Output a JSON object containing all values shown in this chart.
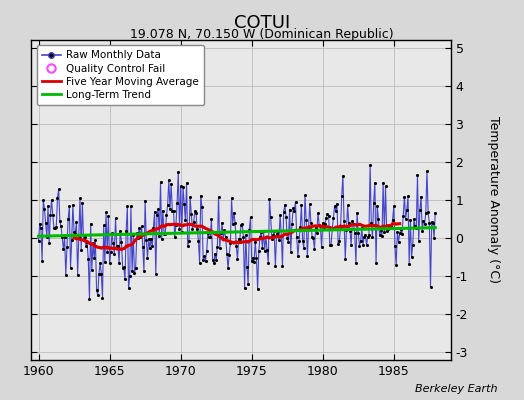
{
  "title": "COTUI",
  "subtitle": "19.078 N, 70.150 W (Dominican Republic)",
  "attribution": "Berkeley Earth",
  "ylabel": "Temperature Anomaly (°C)",
  "xlim": [
    1959.5,
    1989.0
  ],
  "ylim": [
    -3.2,
    5.2
  ],
  "yticks": [
    -3,
    -2,
    -1,
    0,
    1,
    2,
    3,
    4,
    5
  ],
  "xticks": [
    1960,
    1965,
    1970,
    1975,
    1980,
    1985
  ],
  "bg_color": "#d8d8d8",
  "plot_bg_color": "#e8e8e8",
  "raw_line_color": "#4444cc",
  "raw_marker_color": "#000000",
  "ma_color": "#dd0000",
  "trend_color": "#00bb00",
  "qc_fail_color": "#ff44ff",
  "seed": 37
}
